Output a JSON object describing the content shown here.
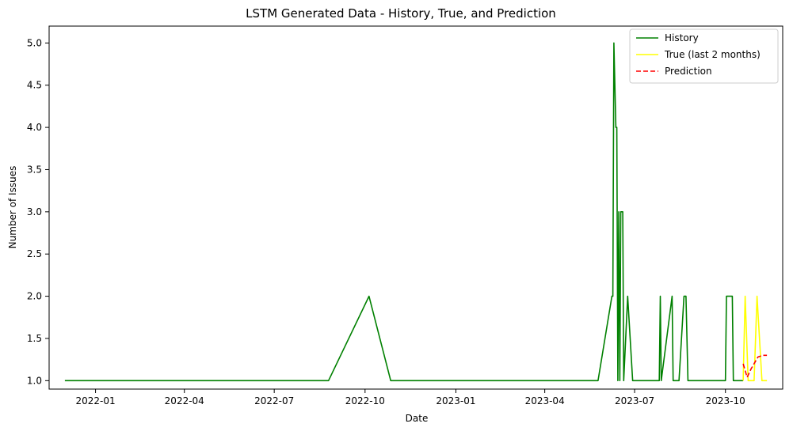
{
  "chart_data": {
    "type": "line",
    "title": "LSTM Generated Data - History, True, and Prediction",
    "xlabel": "Date",
    "ylabel": "Number of Issues",
    "x_range": [
      "2021-11-15",
      "2023-11-28"
    ],
    "ylim": [
      0.9,
      5.2
    ],
    "x_ticks": [
      "2022-01",
      "2022-04",
      "2022-07",
      "2022-10",
      "2023-01",
      "2023-04",
      "2023-07",
      "2023-10"
    ],
    "y_ticks": [
      "1.0",
      "1.5",
      "2.0",
      "2.5",
      "3.0",
      "3.5",
      "4.0",
      "4.5",
      "5.0"
    ],
    "grid": false,
    "legend": "top-right",
    "series": [
      {
        "name": "History",
        "color": "#008000",
        "dash": "solid",
        "points": [
          [
            "2021-12-01",
            1
          ],
          [
            "2022-08-25",
            1
          ],
          [
            "2022-10-05",
            2
          ],
          [
            "2022-10-27",
            1
          ],
          [
            "2023-05-25",
            1
          ],
          [
            "2023-06-08",
            2
          ],
          [
            "2023-06-09",
            2
          ],
          [
            "2023-06-10",
            5
          ],
          [
            "2023-06-12",
            4
          ],
          [
            "2023-06-13",
            4
          ],
          [
            "2023-06-14",
            1
          ],
          [
            "2023-06-15",
            3
          ],
          [
            "2023-06-16",
            1
          ],
          [
            "2023-06-17",
            3
          ],
          [
            "2023-06-19",
            3
          ],
          [
            "2023-06-20",
            1
          ],
          [
            "2023-06-24",
            2
          ],
          [
            "2023-06-29",
            1
          ],
          [
            "2023-07-26",
            1
          ],
          [
            "2023-07-27",
            2
          ],
          [
            "2023-07-28",
            1
          ],
          [
            "2023-08-08",
            2
          ],
          [
            "2023-08-09",
            1
          ],
          [
            "2023-08-15",
            1
          ],
          [
            "2023-08-20",
            2
          ],
          [
            "2023-08-22",
            2
          ],
          [
            "2023-08-24",
            1
          ],
          [
            "2023-10-01",
            1
          ],
          [
            "2023-10-02",
            2
          ],
          [
            "2023-10-08",
            2
          ],
          [
            "2023-10-09",
            1
          ],
          [
            "2023-10-19",
            1
          ]
        ]
      },
      {
        "name": "True (last 2 months)",
        "color": "#ffff00",
        "dash": "solid",
        "points": [
          [
            "2023-10-19",
            1
          ],
          [
            "2023-10-21",
            2
          ],
          [
            "2023-10-24",
            1
          ],
          [
            "2023-10-30",
            1
          ],
          [
            "2023-11-02",
            2
          ],
          [
            "2023-11-07",
            1
          ],
          [
            "2023-11-12",
            1
          ]
        ]
      },
      {
        "name": "Prediction",
        "color": "#ff0000",
        "dash": "dashed",
        "points": [
          [
            "2023-10-19",
            1.2
          ],
          [
            "2023-10-23",
            1.04
          ],
          [
            "2023-10-27",
            1.14
          ],
          [
            "2023-10-31",
            1.22
          ],
          [
            "2023-11-03",
            1.28
          ],
          [
            "2023-11-08",
            1.3
          ],
          [
            "2023-11-12",
            1.3
          ]
        ]
      }
    ]
  }
}
